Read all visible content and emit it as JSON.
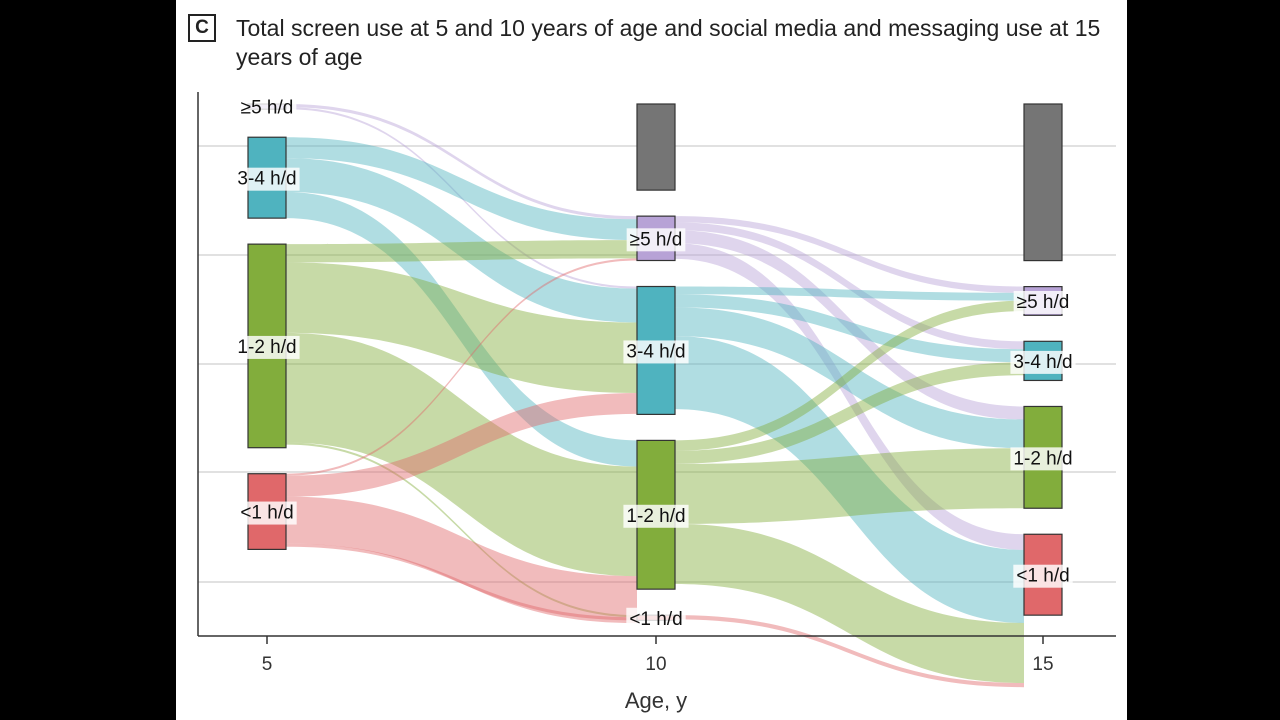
{
  "panel_label": "C",
  "chart_data": {
    "type": "sankey",
    "title": "Total screen use at 5 and 10 years of age and social media and messaging use at 15 years of age",
    "xlabel": "Age, y",
    "ylabel": "",
    "x_ticks": [
      "5",
      "10",
      "15"
    ],
    "grid": "horizontal",
    "categories": [
      "≥5 h/d",
      "3-4 h/d",
      "1-2 h/d",
      "<1 h/d"
    ],
    "category_colors": {
      "≥5 h/d": "#b7a2d6",
      "3-4 h/d": "#4fb3bf",
      "1-2 h/d": "#82ad3c",
      "<1 h/d": "#e0686a",
      "missing": "#757575"
    },
    "stages": [
      {
        "age": "5",
        "nodes": [
          {
            "label": "≥5 h/d",
            "share": 0.01
          },
          {
            "label": "3-4 h/d",
            "share": 0.155
          },
          {
            "label": "1-2 h/d",
            "share": 0.39
          },
          {
            "label": "<1 h/d",
            "share": 0.145
          }
        ]
      },
      {
        "age": "10",
        "nodes": [
          {
            "label": "",
            "category": "missing",
            "share": 0.165
          },
          {
            "label": "≥5 h/d",
            "share": 0.085
          },
          {
            "label": "3-4 h/d",
            "share": 0.245
          },
          {
            "label": "1-2 h/d",
            "share": 0.285
          },
          {
            "label": "<1 h/d",
            "share": 0.01
          }
        ]
      },
      {
        "age": "15",
        "nodes": [
          {
            "label": "",
            "category": "missing",
            "share": 0.3
          },
          {
            "label": "≥5 h/d",
            "share": 0.055
          },
          {
            "label": "3-4 h/d",
            "share": 0.075
          },
          {
            "label": "1-2 h/d",
            "share": 0.195
          },
          {
            "label": "<1 h/d",
            "share": 0.155
          }
        ]
      }
    ],
    "flows": [
      {
        "from_age": "5",
        "from": "≥5 h/d",
        "to": "≥5 h/d",
        "share": 0.006
      },
      {
        "from_age": "5",
        "from": "≥5 h/d",
        "to": "3-4 h/d",
        "share": 0.004
      },
      {
        "from_age": "5",
        "from": "3-4 h/d",
        "to": "≥5 h/d",
        "share": 0.04
      },
      {
        "from_age": "5",
        "from": "3-4 h/d",
        "to": "3-4 h/d",
        "share": 0.065
      },
      {
        "from_age": "5",
        "from": "3-4 h/d",
        "to": "1-2 h/d",
        "share": 0.05
      },
      {
        "from_age": "5",
        "from": "1-2 h/d",
        "to": "≥5 h/d",
        "share": 0.035
      },
      {
        "from_age": "5",
        "from": "1-2 h/d",
        "to": "3-4 h/d",
        "share": 0.135
      },
      {
        "from_age": "5",
        "from": "1-2 h/d",
        "to": "1-2 h/d",
        "share": 0.21
      },
      {
        "from_age": "5",
        "from": "1-2 h/d",
        "to": "<1 h/d",
        "share": 0.004
      },
      {
        "from_age": "5",
        "from": "<1 h/d",
        "to": "≥5 h/d",
        "share": 0.004
      },
      {
        "from_age": "5",
        "from": "<1 h/d",
        "to": "3-4 h/d",
        "share": 0.04
      },
      {
        "from_age": "5",
        "from": "<1 h/d",
        "to": "1-2 h/d",
        "share": 0.09
      },
      {
        "from_age": "5",
        "from": "<1 h/d",
        "to": "<1 h/d",
        "share": 0.006
      },
      {
        "from_age": "10",
        "from": "≥5 h/d",
        "to": "≥5 h/d",
        "share": 0.012
      },
      {
        "from_age": "10",
        "from": "≥5 h/d",
        "to": "3-4 h/d",
        "share": 0.015
      },
      {
        "from_age": "10",
        "from": "≥5 h/d",
        "to": "1-2 h/d",
        "share": 0.025
      },
      {
        "from_age": "10",
        "from": "≥5 h/d",
        "to": "<1 h/d",
        "share": 0.03
      },
      {
        "from_age": "10",
        "from": "3-4 h/d",
        "to": "≥5 h/d",
        "share": 0.015
      },
      {
        "from_age": "10",
        "from": "3-4 h/d",
        "to": "3-4 h/d",
        "share": 0.025
      },
      {
        "from_age": "10",
        "from": "3-4 h/d",
        "to": "1-2 h/d",
        "share": 0.055
      },
      {
        "from_age": "10",
        "from": "3-4 h/d",
        "to": "<1 h/d",
        "share": 0.14
      },
      {
        "from_age": "10",
        "from": "1-2 h/d",
        "to": "≥5 h/d",
        "share": 0.02
      },
      {
        "from_age": "10",
        "from": "1-2 h/d",
        "to": "3-4 h/d",
        "share": 0.025
      },
      {
        "from_age": "10",
        "from": "1-2 h/d",
        "to": "1-2 h/d",
        "share": 0.115
      },
      {
        "from_age": "10",
        "from": "1-2 h/d",
        "to": "<1 h/d",
        "share": 0.115
      },
      {
        "from_age": "10",
        "from": "<1 h/d",
        "to": "<1 h/d",
        "share": 0.008
      }
    ]
  }
}
